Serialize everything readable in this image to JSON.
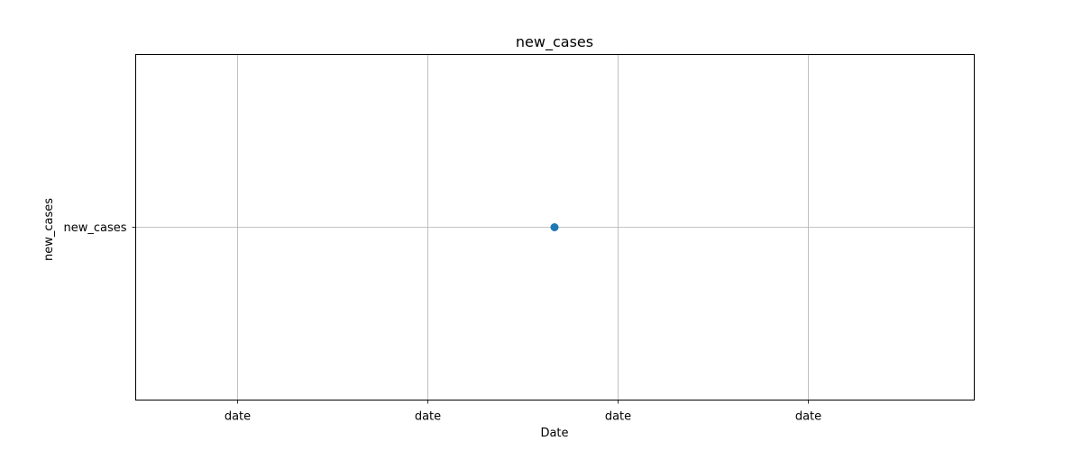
{
  "chart_data": {
    "type": "scatter",
    "title": "new_cases",
    "xlabel": "Date",
    "ylabel": "new_cases",
    "x_tick_labels": [
      "date",
      "date",
      "date",
      "date"
    ],
    "y_tick_labels": [
      "new_cases"
    ],
    "x_axis": {
      "type": "category",
      "categories": [
        "date"
      ],
      "range": [
        -0.5,
        0.5
      ]
    },
    "y_axis": {
      "type": "category",
      "categories": [
        "new_cases"
      ],
      "range": [
        -0.5,
        0.5
      ]
    },
    "series": [
      {
        "x": [
          "date"
        ],
        "y": [
          "new_cases"
        ],
        "color": "#1f77b4"
      }
    ],
    "grid": true,
    "legend": "none"
  }
}
